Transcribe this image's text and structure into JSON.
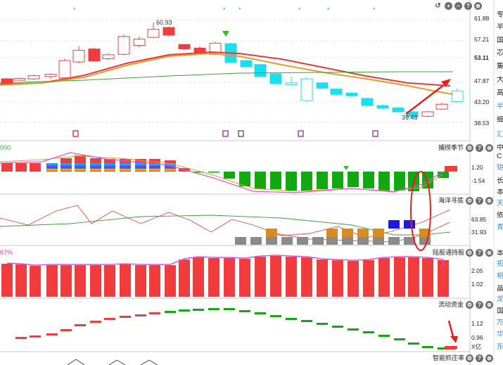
{
  "main": {
    "price_ticks": [
      "61.88",
      "57.21",
      "53.11",
      "47.87",
      "43.20",
      "38.53"
    ],
    "high_label": "60.93",
    "low_label": "39.48"
  },
  "panels": [
    {
      "name": "捕捞季节",
      "ticks": [
        "1.20",
        "-1.54"
      ],
      "left_label": "000"
    },
    {
      "name": "海洋寻底",
      "ticks": [
        "63.85",
        "31.93"
      ],
      "left_label": ""
    },
    {
      "name": "陆股通持股",
      "ticks": [
        "2.05",
        "1.02"
      ],
      "left_label": "67%"
    },
    {
      "name": "流动资金",
      "ticks": [
        "1.12",
        "0.96"
      ],
      "left_label": ""
    },
    {
      "name": "智能抓庄率",
      "ticks": [],
      "left_label": ""
    }
  ],
  "unit_label": "X亿",
  "top_icons": [
    "↺",
    "+",
    "−",
    "?",
    "⊗"
  ],
  "panel_icons": [
    "⚙",
    "?",
    "⊗"
  ],
  "sidebar_labels": [
    "专",
    "半",
    "国",
    "芯",
    "集",
    "大",
    "高",
    "半",
    "细",
    "汇",
    "中",
    "C",
    "钜",
    "长",
    "本",
    "天",
    "依",
    "青",
    "本",
    "拓",
    "裕",
    "晶",
    "龙",
    "国",
    "方",
    "华",
    "东"
  ],
  "colors": {
    "up": "#f03c3c",
    "down": "#19e0f0",
    "ma_red": "#e8383c",
    "ma_orange": "#e89a2a",
    "ma_green": "#3aa03a",
    "vol_green": "#12a812",
    "pink": "#e050e8"
  }
}
